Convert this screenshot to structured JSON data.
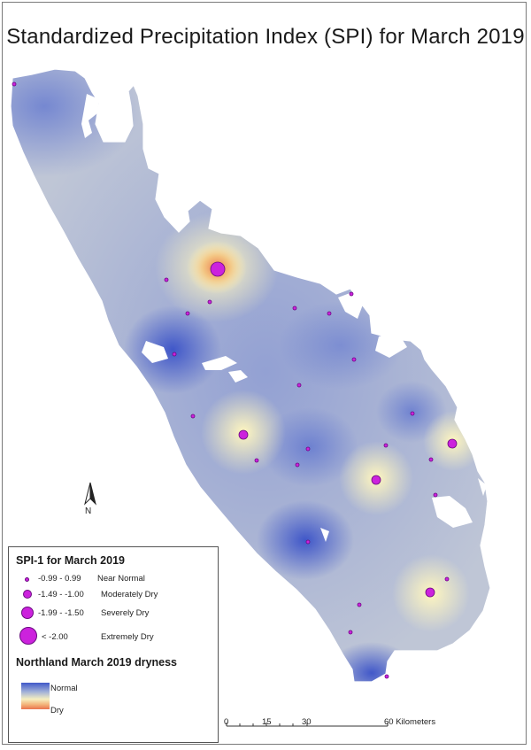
{
  "title": "Standardized Precipitation Index (SPI) for March 2019",
  "north_arrow": {
    "letter": "N"
  },
  "legend": {
    "spi_title": "SPI-1 for March 2019",
    "classes": [
      {
        "range": "-0.99 - 0.99",
        "label": "Near Normal"
      },
      {
        "range": "-1.49 - -1.00",
        "label": "Moderately Dry"
      },
      {
        "range": "-1.99 - -1.50",
        "label": "Severely Dry"
      },
      {
        "range": "< -2.00",
        "label": "Extremely Dry"
      }
    ],
    "dryness_title": "Northland March 2019 dryness",
    "ramp_top_label": "Normal",
    "ramp_bottom_label": "Dry",
    "ramp_colors": [
      "#4059c9",
      "#f6efc0",
      "#e9734e"
    ]
  },
  "scale_bar": {
    "ticks": [
      "0",
      "15",
      "30",
      "60 Kilometers"
    ]
  },
  "colors": {
    "symbol_fill": "#cc22dd",
    "normal": "#4059c9",
    "dry": "#e9734e"
  }
}
